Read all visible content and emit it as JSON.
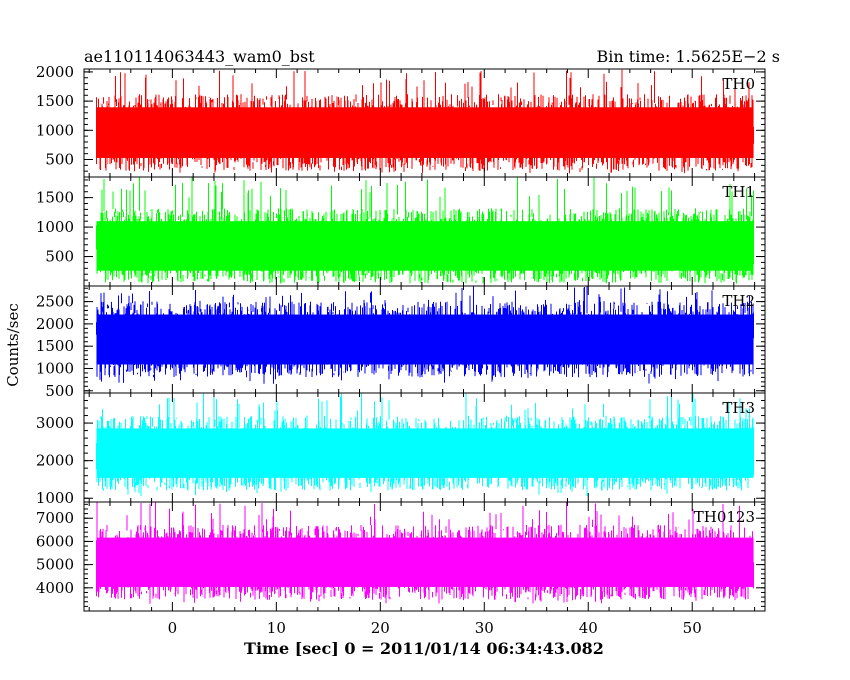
{
  "header": {
    "title": "ae110114063443_wam0_bst",
    "bin_time": "Bin time: 1.5625E−2 s"
  },
  "ylabel": "Counts/sec",
  "xlabel": "Time [sec] 0 = 2011/01/14 06:34:43.082",
  "chart_data": {
    "type": "line",
    "x_ticks": [
      0,
      10,
      20,
      30,
      40,
      50
    ],
    "x_tick_labels": [
      "0",
      "10",
      "20",
      "30",
      "40",
      "50"
    ],
    "xlim": [
      -8.5,
      57
    ],
    "data_x_range": [
      -7.3,
      55.9
    ],
    "panels": [
      {
        "name": "TH0",
        "color": "#ff0000",
        "ylim": [
          200,
          2050
        ],
        "y_ticks": [
          500,
          1000,
          1500,
          2000
        ],
        "y_tick_labels": [
          "500",
          "1000",
          "1500",
          "2000"
        ],
        "mean": 960,
        "low": 250,
        "high": 1800,
        "peak": 2050
      },
      {
        "name": "TH1",
        "color": "#00ff00",
        "ylim": [
          0,
          1850
        ],
        "y_ticks": [
          500,
          1000,
          1500
        ],
        "y_tick_labels": [
          "500",
          "1000",
          "1500"
        ],
        "mean": 680,
        "low": 100,
        "high": 1600,
        "peak": 1850
      },
      {
        "name": "TH2",
        "color": "#0000ff",
        "ylim": [
          450,
          2850
        ],
        "y_ticks": [
          500,
          1000,
          1500,
          2000,
          2500
        ],
        "y_tick_labels": [
          "500",
          "1000",
          "1500",
          "2000",
          "2500"
        ],
        "mean": 1650,
        "low": 650,
        "high": 2650,
        "peak": 2850
      },
      {
        "name": "TH3",
        "color": "#00ffff",
        "ylim": [
          900,
          3800
        ],
        "y_ticks": [
          1000,
          2000,
          3000
        ],
        "y_tick_labels": [
          "1000",
          "2000",
          "3000"
        ],
        "mean": 2200,
        "low": 1050,
        "high": 3400,
        "peak": 3800
      },
      {
        "name": "TH0123",
        "color": "#ff00ff",
        "ylim": [
          3000,
          7700
        ],
        "y_ticks": [
          4000,
          5000,
          6000,
          7000
        ],
        "y_tick_labels": [
          "4000",
          "5000",
          "6000",
          "7000"
        ],
        "mean": 5100,
        "low": 3300,
        "high": 7100,
        "peak": 7700
      }
    ]
  }
}
